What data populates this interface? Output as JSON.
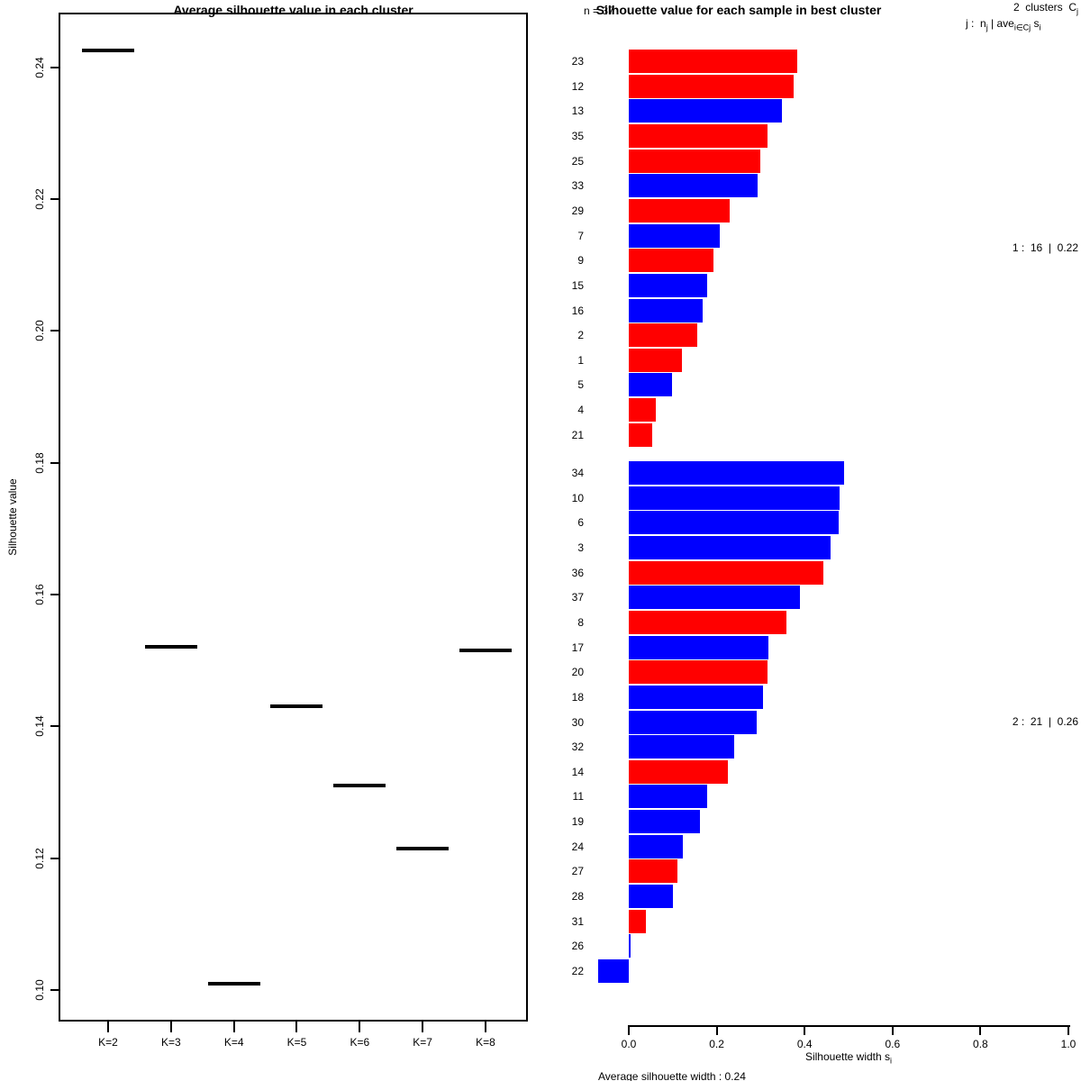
{
  "colors": {
    "red": "#FF0000",
    "blue": "#0000FF",
    "text": "#000000",
    "axis": "#000000",
    "background": "#FFFFFF"
  },
  "chart_data": [
    {
      "type": "scatter",
      "marker": "horizontal-dash",
      "title": "Average silhouette value in each cluster",
      "xlabel": "",
      "ylabel": "Silhouette value",
      "categories": [
        "K=2",
        "K=3",
        "K=4",
        "K=5",
        "K=6",
        "K=7",
        "K=8"
      ],
      "values": [
        0.2425,
        0.152,
        0.101,
        0.143,
        0.131,
        0.1215,
        0.1515
      ],
      "y_ticks": [
        "0.10",
        "0.12",
        "0.14",
        "0.16",
        "0.18",
        "0.20",
        "0.22",
        "0.24"
      ],
      "ylim": [
        0.0952,
        0.2483
      ],
      "grid": false,
      "legend_position": "none"
    },
    {
      "type": "bar",
      "orientation": "horizontal",
      "title": "Silhouette value for each sample in best cluster",
      "n_label": "n = 37",
      "xlabel_parts": [
        [
          "t",
          "Silhouette width s"
        ],
        [
          "s",
          "i"
        ]
      ],
      "x_ticks": [
        "0.0",
        "0.2",
        "0.4",
        "0.6",
        "0.8",
        "1.0"
      ],
      "xlim": [
        0,
        1
      ],
      "grid": false,
      "legend_line1_parts": [
        [
          "t",
          "2  clusters  C"
        ],
        [
          "s",
          "j"
        ]
      ],
      "legend_line2_parts": [
        [
          "t",
          "j :  n"
        ],
        [
          "s",
          "j"
        ],
        [
          "t",
          " | ave"
        ],
        [
          "s",
          "i∈Cj"
        ],
        [
          "t",
          " s"
        ],
        [
          "s",
          "i"
        ]
      ],
      "footer": "Average silhouette width : 0.24",
      "clusters": [
        {
          "summary": "1 :  16  |  0.22",
          "samples": [
            {
              "id": "23",
              "value": 0.383,
              "color": "red"
            },
            {
              "id": "12",
              "value": 0.375,
              "color": "red"
            },
            {
              "id": "13",
              "value": 0.348,
              "color": "blue"
            },
            {
              "id": "35",
              "value": 0.316,
              "color": "red"
            },
            {
              "id": "25",
              "value": 0.299,
              "color": "red"
            },
            {
              "id": "33",
              "value": 0.293,
              "color": "blue"
            },
            {
              "id": "29",
              "value": 0.23,
              "color": "red"
            },
            {
              "id": "7",
              "value": 0.207,
              "color": "blue"
            },
            {
              "id": "9",
              "value": 0.193,
              "color": "red"
            },
            {
              "id": "15",
              "value": 0.178,
              "color": "blue"
            },
            {
              "id": "16",
              "value": 0.168,
              "color": "blue"
            },
            {
              "id": "2",
              "value": 0.156,
              "color": "red"
            },
            {
              "id": "1",
              "value": 0.121,
              "color": "red"
            },
            {
              "id": "5",
              "value": 0.098,
              "color": "blue"
            },
            {
              "id": "4",
              "value": 0.061,
              "color": "red"
            },
            {
              "id": "21",
              "value": 0.053,
              "color": "red"
            }
          ]
        },
        {
          "summary": "2 :  21  |  0.26",
          "samples": [
            {
              "id": "34",
              "value": 0.49,
              "color": "blue"
            },
            {
              "id": "10",
              "value": 0.48,
              "color": "blue"
            },
            {
              "id": "6",
              "value": 0.477,
              "color": "blue"
            },
            {
              "id": "3",
              "value": 0.459,
              "color": "blue"
            },
            {
              "id": "36",
              "value": 0.443,
              "color": "red"
            },
            {
              "id": "37",
              "value": 0.389,
              "color": "blue"
            },
            {
              "id": "8",
              "value": 0.359,
              "color": "red"
            },
            {
              "id": "17",
              "value": 0.318,
              "color": "blue"
            },
            {
              "id": "20",
              "value": 0.316,
              "color": "red"
            },
            {
              "id": "18",
              "value": 0.305,
              "color": "blue"
            },
            {
              "id": "30",
              "value": 0.291,
              "color": "blue"
            },
            {
              "id": "32",
              "value": 0.24,
              "color": "blue"
            },
            {
              "id": "14",
              "value": 0.225,
              "color": "red"
            },
            {
              "id": "11",
              "value": 0.178,
              "color": "blue"
            },
            {
              "id": "19",
              "value": 0.162,
              "color": "blue"
            },
            {
              "id": "24",
              "value": 0.123,
              "color": "blue"
            },
            {
              "id": "27",
              "value": 0.111,
              "color": "red"
            },
            {
              "id": "28",
              "value": 0.1,
              "color": "blue"
            },
            {
              "id": "31",
              "value": 0.039,
              "color": "red"
            },
            {
              "id": "26",
              "value": 0.004,
              "color": "blue"
            },
            {
              "id": "22",
              "value": -0.07,
              "color": "blue"
            }
          ]
        }
      ]
    }
  ]
}
